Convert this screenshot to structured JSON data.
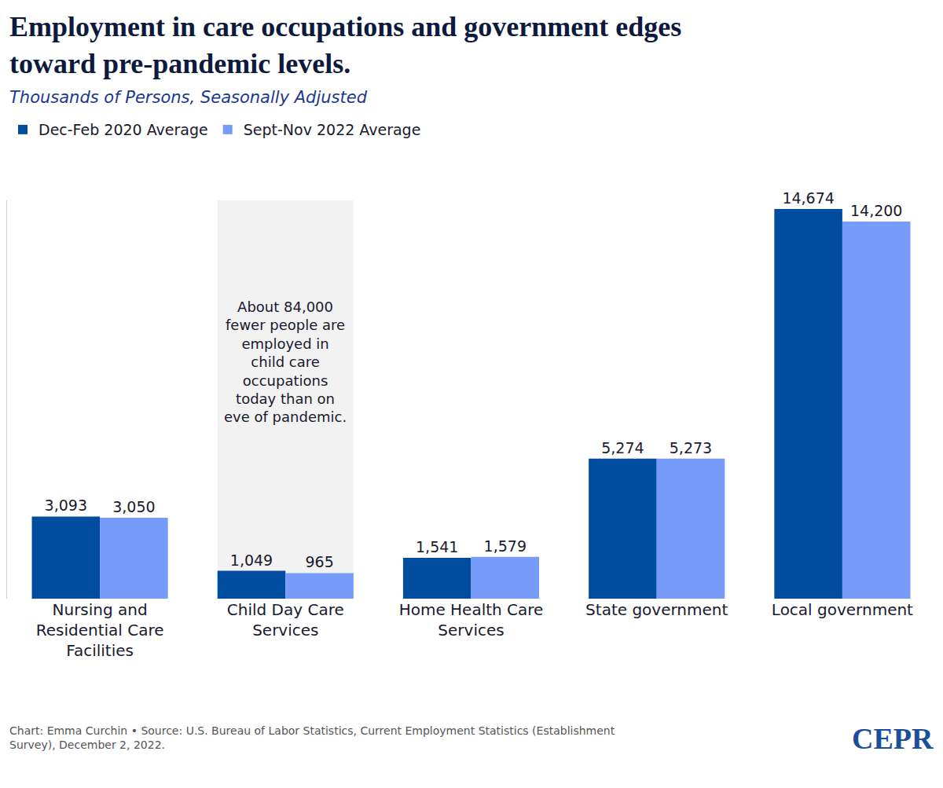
{
  "chart_data": {
    "type": "bar",
    "title": "Employment in care occupations and government edges toward pre-pandemic levels.",
    "subtitle": "Thousands of Persons, Seasonally Adjusted",
    "categories": [
      "Nursing and Residential Care Facilities",
      "Child Day Care Services",
      "Home Health Care Services",
      "State government",
      "Local government"
    ],
    "series": [
      {
        "name": "Dec-Feb 2020 Average",
        "color": "#004c9f",
        "values": [
          3093,
          1049,
          1541,
          5274,
          14674
        ],
        "value_labels": [
          "3,093",
          "1,049",
          "1,541",
          "5,274",
          "14,674"
        ]
      },
      {
        "name": "Sept-Nov 2022 Average",
        "color": "#769bf8",
        "values": [
          3050,
          965,
          1579,
          5273,
          14200
        ],
        "value_labels": [
          "3,050",
          "965",
          "1,579",
          "5,273",
          "14,200"
        ]
      }
    ],
    "ylim": [
      0,
      15000
    ],
    "yticks": [],
    "tick_labels": "x",
    "grid": false,
    "legend": "top-left",
    "data_labels": true,
    "annotations": [
      {
        "text": "About 84,000 fewer people are employed in child care occupations today than on eve of pandemic.",
        "category": "Child Day Care Services"
      }
    ],
    "source": "Chart: Emma Curchin • Source: U.S. Bureau of Labor Statistics, Current Employment Statistics (Establishment Survey), December 2, 2022.",
    "logo": "CEPR"
  }
}
